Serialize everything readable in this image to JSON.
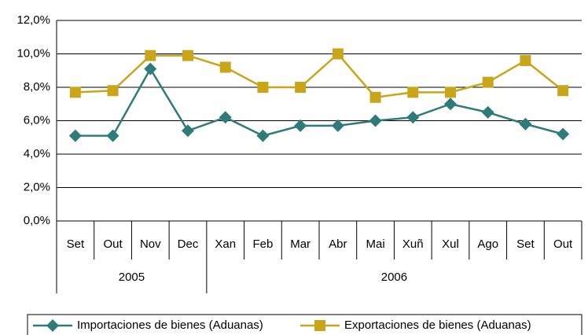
{
  "chart_data": {
    "type": "line",
    "categories": [
      "Set",
      "Out",
      "Nov",
      "Dec",
      "Xan",
      "Feb",
      "Mar",
      "Abr",
      "Mai",
      "Xuñ",
      "Xul",
      "Ago",
      "Set",
      "Out"
    ],
    "category_groups": [
      {
        "label": "2005",
        "size": 4
      },
      {
        "label": "2006",
        "size": 10
      }
    ],
    "series": [
      {
        "name": "Importaciones de bienes (Aduanas)",
        "color": "#2e7b7a",
        "marker": "diamond",
        "values": [
          5.1,
          5.1,
          9.1,
          5.4,
          6.2,
          5.1,
          5.7,
          5.7,
          6.0,
          6.2,
          7.0,
          6.5,
          5.8,
          5.2
        ]
      },
      {
        "name": "Exportaciones de bienes (Aduanas)",
        "color": "#c9a519",
        "marker": "square",
        "values": [
          7.7,
          7.8,
          9.9,
          9.9,
          9.2,
          8.0,
          8.0,
          10.0,
          7.4,
          7.7,
          7.7,
          8.3,
          9.6,
          7.8
        ]
      }
    ],
    "ylim": [
      0,
      12
    ],
    "yticks": [
      {
        "value": 0,
        "label": "0,0%"
      },
      {
        "value": 2,
        "label": "2,0%"
      },
      {
        "value": 4,
        "label": "4,0%"
      },
      {
        "value": 6,
        "label": "6,0%"
      },
      {
        "value": 8,
        "label": "8,0%"
      },
      {
        "value": 10,
        "label": "10,0%"
      },
      {
        "value": 12,
        "label": "12,0%"
      }
    ],
    "grid": true,
    "legend": "bottom"
  }
}
